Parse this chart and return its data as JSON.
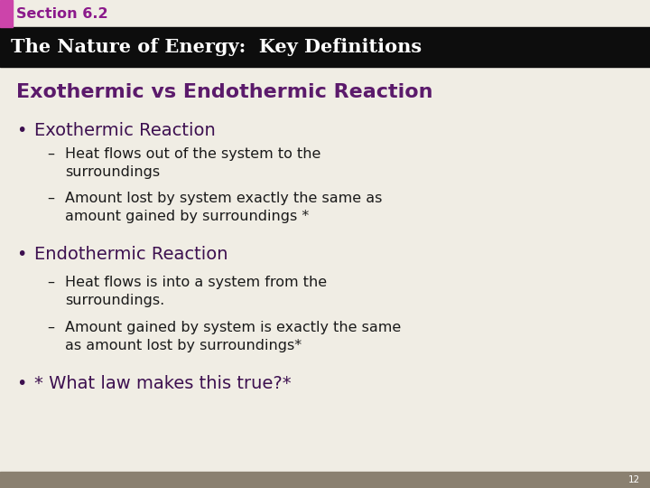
{
  "section_label": "Section 6.2",
  "title_bar_text": "The Nature of Energy:  Key Definitions",
  "slide_heading": "Exothermic vs Endothermic Reaction",
  "bullet1_header": "Exothermic Reaction",
  "bullet1_sub1": "Heat flows out of the system to the\nsurroundings",
  "bullet1_sub2": "Amount lost by system exactly the same as\namount gained by surroundings *",
  "bullet2_header": "Endothermic Reaction",
  "bullet2_sub1": "Heat flows is into a system from the\nsurroundings.",
  "bullet2_sub2": "Amount gained by system is exactly the same\nas amount lost by surroundings*",
  "bullet3": "* What law makes this true?*",
  "page_number": "12",
  "bg_color": "#F0EDE4",
  "title_bar_bg": "#0D0D0D",
  "title_bar_text_color": "#FFFFFF",
  "section_label_color": "#8B1A8B",
  "heading_color": "#5B1A6B",
  "bullet_header_color": "#3D1050",
  "body_text_color": "#1A1A1A",
  "accent_bar_color": "#CC44AA",
  "footer_color": "#8A8070"
}
